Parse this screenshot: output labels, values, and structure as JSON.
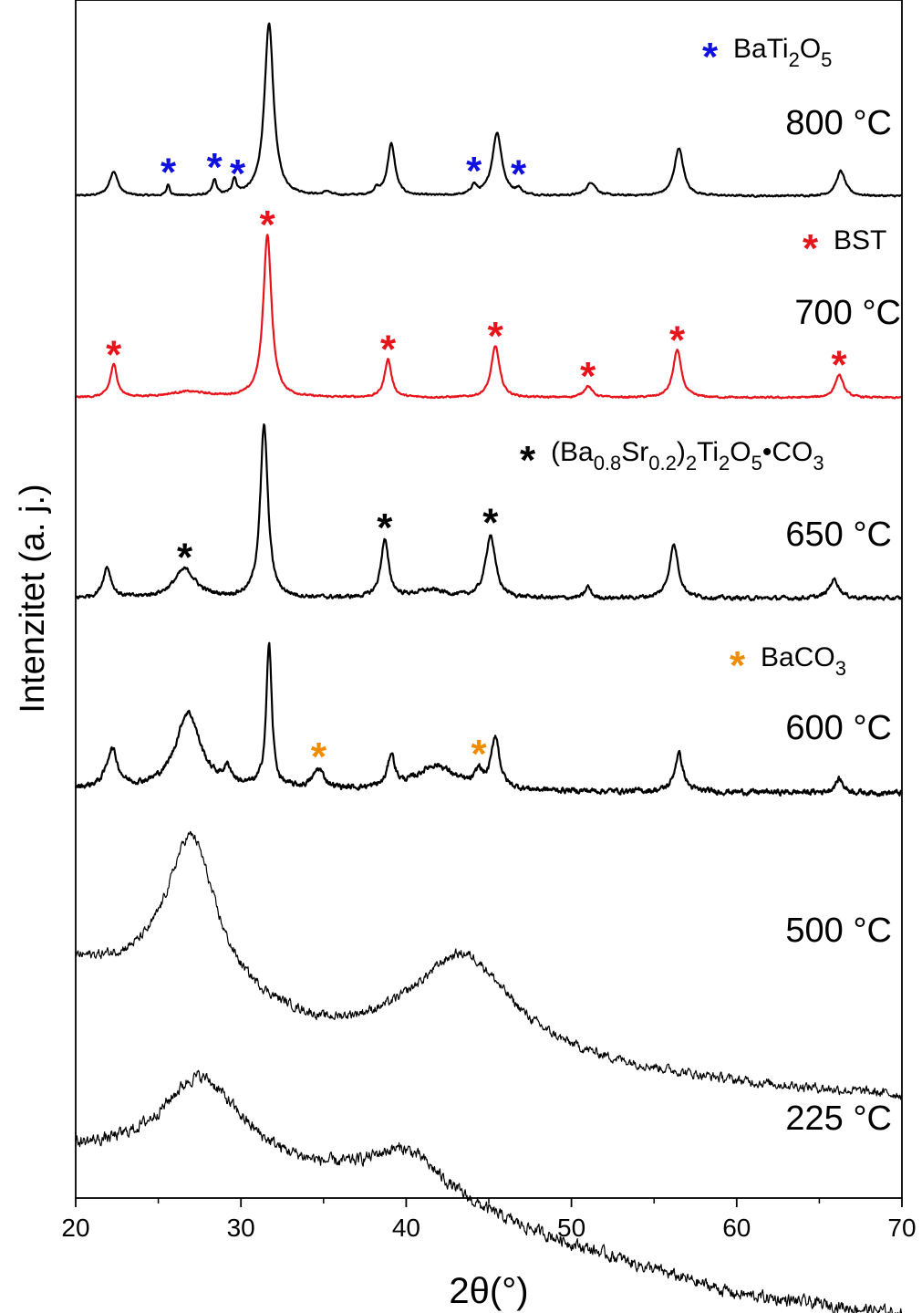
{
  "chart_data": {
    "type": "line",
    "xlabel": "2θ(°)",
    "ylabel": "Intenzitet (a. j.)",
    "xlim": [
      20,
      70
    ],
    "xticks": [
      20,
      30,
      40,
      50,
      60,
      70
    ],
    "grid": false,
    "series": [
      {
        "name": "800 °C",
        "label": "800 °C",
        "color": "#000000",
        "baseline": 0.93,
        "noise": 0.008,
        "background": [
          [
            20,
            0.0
          ],
          [
            70,
            0.0
          ]
        ],
        "peaks": [
          [
            22.3,
            0.13,
            0.3
          ],
          [
            25.6,
            0.06,
            0.12
          ],
          [
            28.4,
            0.08,
            0.15
          ],
          [
            29.6,
            0.08,
            0.15
          ],
          [
            31.7,
            0.9,
            0.33
          ],
          [
            35.2,
            0.02,
            0.2
          ],
          [
            38.2,
            0.03,
            0.2
          ],
          [
            39.1,
            0.27,
            0.28
          ],
          [
            44.1,
            0.05,
            0.2
          ],
          [
            45.5,
            0.33,
            0.35
          ],
          [
            46.8,
            0.03,
            0.2
          ],
          [
            51.2,
            0.07,
            0.35
          ],
          [
            56.5,
            0.25,
            0.33
          ],
          [
            66.3,
            0.13,
            0.33
          ]
        ]
      },
      {
        "name": "700 °C",
        "label": "700 °C",
        "color": "#e8141b",
        "baseline": 0.82,
        "noise": 0.008,
        "background": [
          [
            20,
            0.0
          ],
          [
            70,
            0.0
          ]
        ],
        "peaks": [
          [
            22.3,
            0.17,
            0.25
          ],
          [
            26.8,
            0.03,
            1.5
          ],
          [
            31.6,
            0.85,
            0.3
          ],
          [
            38.9,
            0.2,
            0.25
          ],
          [
            45.4,
            0.27,
            0.3
          ],
          [
            51.0,
            0.06,
            0.3
          ],
          [
            56.4,
            0.25,
            0.3
          ],
          [
            66.2,
            0.12,
            0.3
          ]
        ]
      },
      {
        "name": "650 °C",
        "label": "650 °C",
        "color": "#000000",
        "baseline": 0.8,
        "noise": 0.018,
        "background": [
          [
            20,
            0.0
          ],
          [
            70,
            0.0
          ]
        ],
        "peaks": [
          [
            21.9,
            0.16,
            0.3
          ],
          [
            26.6,
            0.15,
            0.8
          ],
          [
            31.4,
            0.9,
            0.28
          ],
          [
            38.7,
            0.3,
            0.28
          ],
          [
            41.5,
            0.04,
            1.2
          ],
          [
            45.1,
            0.33,
            0.35
          ],
          [
            51.0,
            0.06,
            0.2
          ],
          [
            56.2,
            0.28,
            0.33
          ],
          [
            65.9,
            0.1,
            0.35
          ]
        ]
      },
      {
        "name": "600 °C",
        "label": "600 °C",
        "color": "#000000",
        "baseline": 0.78,
        "noise": 0.025,
        "background": [
          [
            20,
            0.0
          ],
          [
            70,
            -0.02
          ]
        ],
        "peaks": [
          [
            22.2,
            0.2,
            0.4
          ],
          [
            26.8,
            0.4,
            0.9
          ],
          [
            29.2,
            0.08,
            0.3
          ],
          [
            31.7,
            0.75,
            0.2
          ],
          [
            34.7,
            0.1,
            0.4
          ],
          [
            39.1,
            0.17,
            0.25
          ],
          [
            41.8,
            0.13,
            1.4
          ],
          [
            44.4,
            0.08,
            0.25
          ],
          [
            45.4,
            0.27,
            0.3
          ],
          [
            56.5,
            0.2,
            0.3
          ],
          [
            66.2,
            0.07,
            0.3
          ]
        ]
      },
      {
        "name": "500 °C",
        "label": "500 °C",
        "color": "#000000",
        "baseline": 0.9,
        "noise": 0.035,
        "background": [
          [
            20,
            0.12
          ],
          [
            25,
            0.05
          ],
          [
            35,
            -0.18
          ],
          [
            40,
            -0.2
          ],
          [
            50,
            -0.3
          ],
          [
            60,
            -0.38
          ],
          [
            70,
            -0.43
          ]
        ],
        "peaks": [
          [
            27.0,
            0.65,
            1.8
          ],
          [
            43.5,
            0.4,
            3.5
          ]
        ]
      },
      {
        "name": "225 °C",
        "label": "225 °C",
        "color": "#000000",
        "baseline": 0.6,
        "noise": 0.045,
        "background": [
          [
            20,
            0.1
          ],
          [
            30,
            0.05
          ],
          [
            40,
            -0.1
          ],
          [
            50,
            -0.3
          ],
          [
            60,
            -0.5
          ],
          [
            70,
            -0.58
          ]
        ],
        "peaks": [
          [
            27.5,
            0.35,
            2.8
          ],
          [
            40.0,
            0.2,
            3.0
          ]
        ]
      }
    ],
    "phase_markers": [
      {
        "phase": "BaTi2O5",
        "color": "#1010e0",
        "series": "800 °C",
        "positions": [
          25.6,
          28.4,
          29.8,
          44.1,
          46.8
        ]
      },
      {
        "phase": "BST",
        "color": "#e8141b",
        "series": "700 °C",
        "positions": [
          22.3,
          31.6,
          38.9,
          45.4,
          51.0,
          56.4,
          66.2
        ]
      },
      {
        "phase": "(Ba0.8Sr0.2)2Ti2O5•CO3",
        "color": "#000000",
        "series": "650 °C",
        "positions": [
          26.6,
          38.7,
          45.1
        ]
      },
      {
        "phase": "BaCO3",
        "color": "#f08c00",
        "series": "600 °C",
        "positions": [
          34.7,
          44.4
        ]
      }
    ],
    "legend": [
      {
        "symbol": "*",
        "color": "#1010e0",
        "parts": [
          [
            "BaTi",
            ""
          ],
          [
            "2",
            "sub"
          ],
          [
            "O",
            ""
          ],
          [
            "5",
            "sub"
          ]
        ]
      },
      {
        "symbol": "*",
        "color": "#e8141b",
        "parts": [
          [
            "BST",
            ""
          ]
        ]
      },
      {
        "symbol": "*",
        "color": "#000000",
        "parts": [
          [
            "(Ba",
            ""
          ],
          [
            "0.8",
            "sub"
          ],
          [
            "Sr",
            ""
          ],
          [
            "0.2",
            "sub"
          ],
          [
            ")",
            ""
          ],
          [
            "2",
            "sub"
          ],
          [
            "Ti",
            ""
          ],
          [
            "2",
            "sub"
          ],
          [
            "O",
            ""
          ],
          [
            "5",
            "sub"
          ],
          [
            "•CO",
            ""
          ],
          [
            "3",
            "sub"
          ]
        ]
      },
      {
        "symbol": "*",
        "color": "#f08c00",
        "parts": [
          [
            "BaCO",
            ""
          ],
          [
            "3",
            "sub"
          ]
        ]
      }
    ]
  }
}
